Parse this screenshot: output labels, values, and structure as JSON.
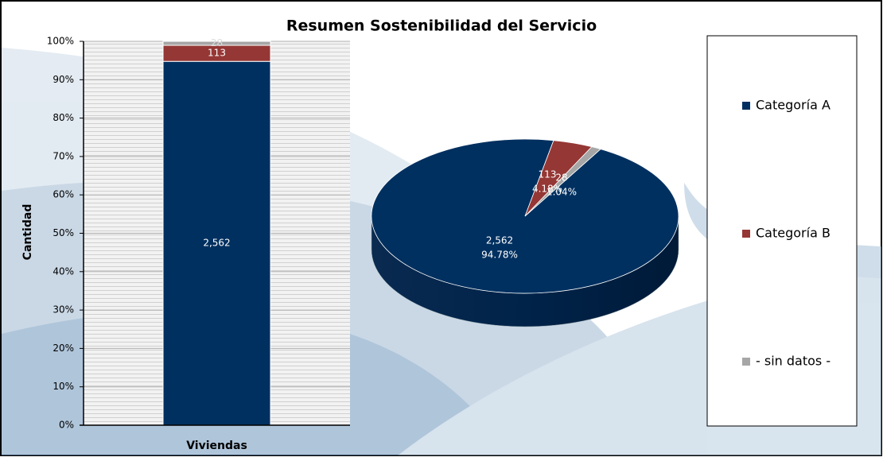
{
  "chart_data": [
    {
      "type": "bar",
      "title": "Resumen Sostenibilidad del Servicio",
      "ylabel": "Cantidad",
      "categories": [
        "Viviendas"
      ],
      "series": [
        {
          "name": "Categoría A",
          "color": "#003060",
          "values": [
            94.78
          ]
        },
        {
          "name": "Categoría B",
          "color": "#953735",
          "values": [
            4.18
          ]
        },
        {
          "name": "- sin datos -",
          "color": "#a6a6a6",
          "values": [
            1.04
          ]
        }
      ],
      "ylim": [
        0,
        100
      ],
      "yticks": [
        {
          "value": 0,
          "label": "0%"
        },
        {
          "value": 10,
          "label": "10%"
        },
        {
          "value": 20,
          "label": "20%"
        },
        {
          "value": 30,
          "label": "30%"
        },
        {
          "value": 40,
          "label": "40%"
        },
        {
          "value": 50,
          "label": "50%"
        },
        {
          "value": 60,
          "label": "60%"
        },
        {
          "value": 70,
          "label": "70%"
        },
        {
          "value": 80,
          "label": "80%"
        },
        {
          "value": 90,
          "label": "90%"
        },
        {
          "value": 100,
          "label": "100%"
        }
      ],
      "grid": true,
      "legend": "right"
    },
    {
      "type": "pie",
      "values": [
        2562,
        113,
        28
      ],
      "value_labels": [
        "2,562",
        "113",
        "28"
      ],
      "percent_labels": [
        "94.78%",
        "4.18%",
        "1.04%"
      ]
    }
  ]
}
